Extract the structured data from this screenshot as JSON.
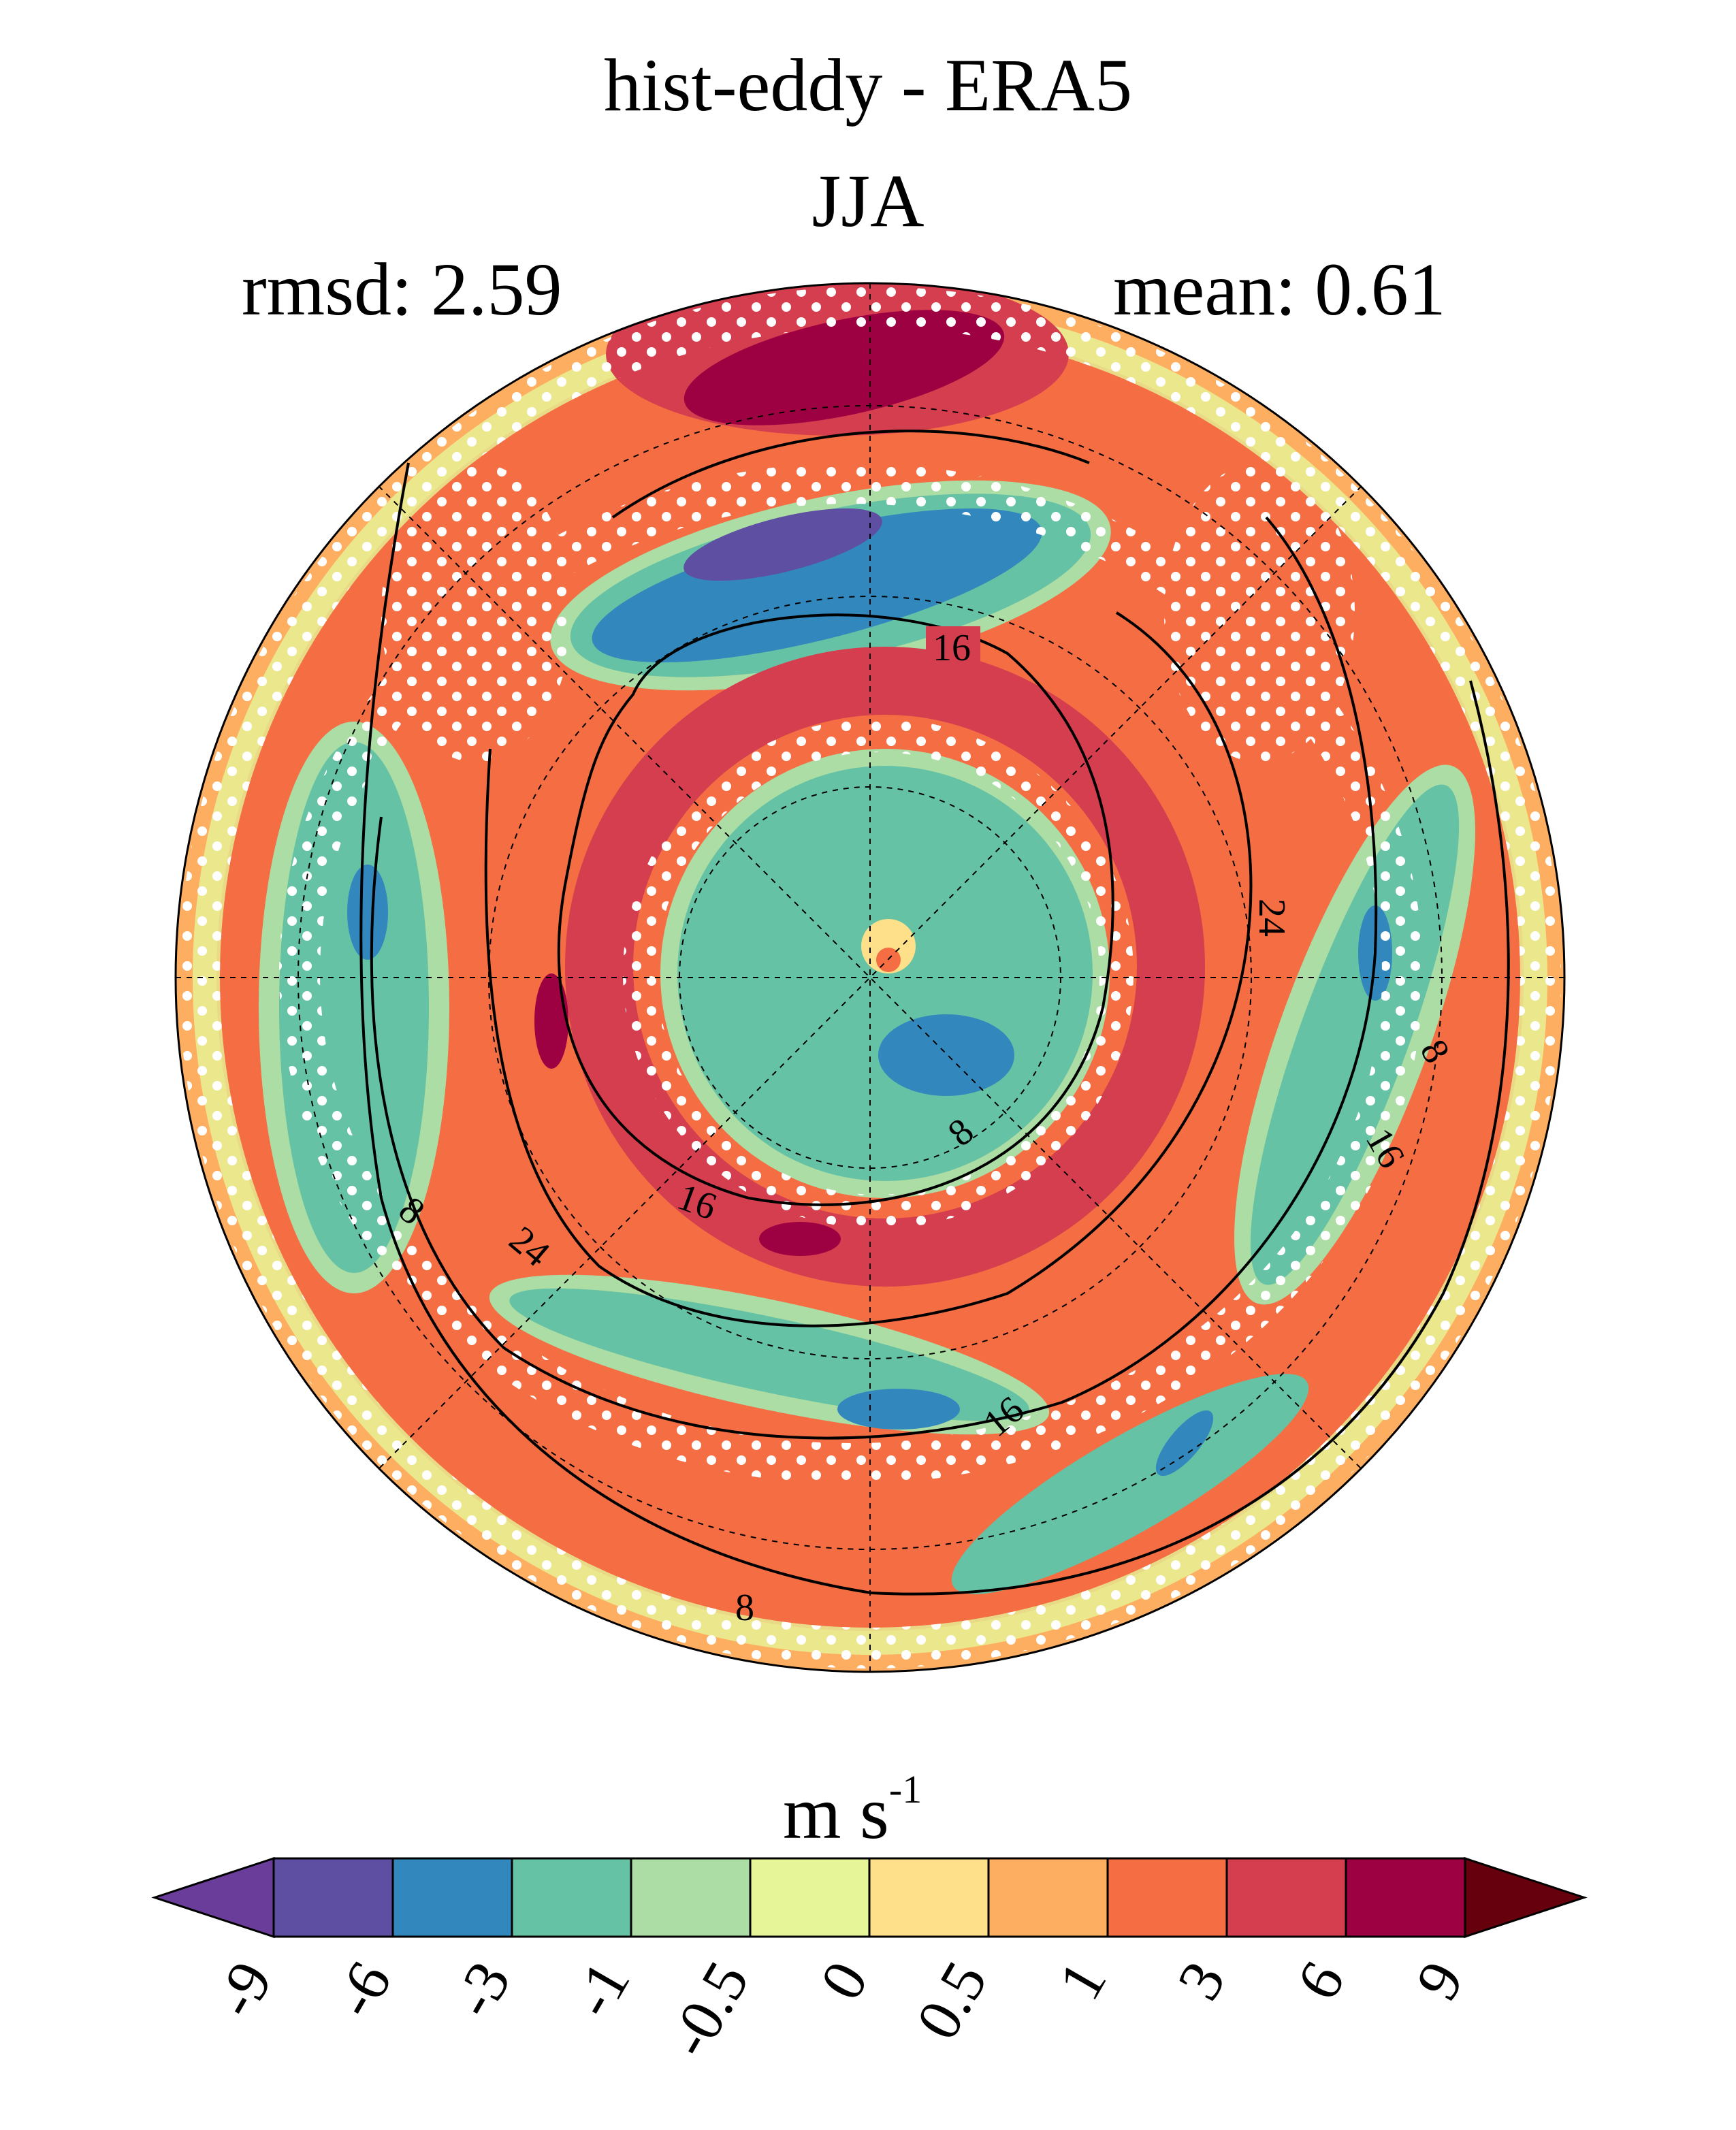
{
  "title": "hist-eddy - ERA5",
  "season": "JJA",
  "stats": {
    "rmsd": "rmsd: 2.59",
    "mean": "mean: 0.61"
  },
  "colorbar": {
    "unit": "m s",
    "unit_exp": "-1",
    "ticks": [
      "-9",
      "-6",
      "-3",
      "-1",
      "-0.5",
      "0",
      "0.5",
      "1",
      "3",
      "6",
      "9"
    ],
    "colors": [
      "#5e4fa2",
      "#3288bd",
      "#66c2a5",
      "#abdda4",
      "#e6f598",
      "#fee08b",
      "#fdae61",
      "#f46d43",
      "#d53e4f",
      "#9e0142"
    ],
    "extend_low": "#6a3d9a",
    "extend_high": "#67000d"
  },
  "contour_labels": [
    "16",
    "24",
    "8",
    "16",
    "8",
    "24",
    "16",
    "8",
    "16",
    "8"
  ]
}
